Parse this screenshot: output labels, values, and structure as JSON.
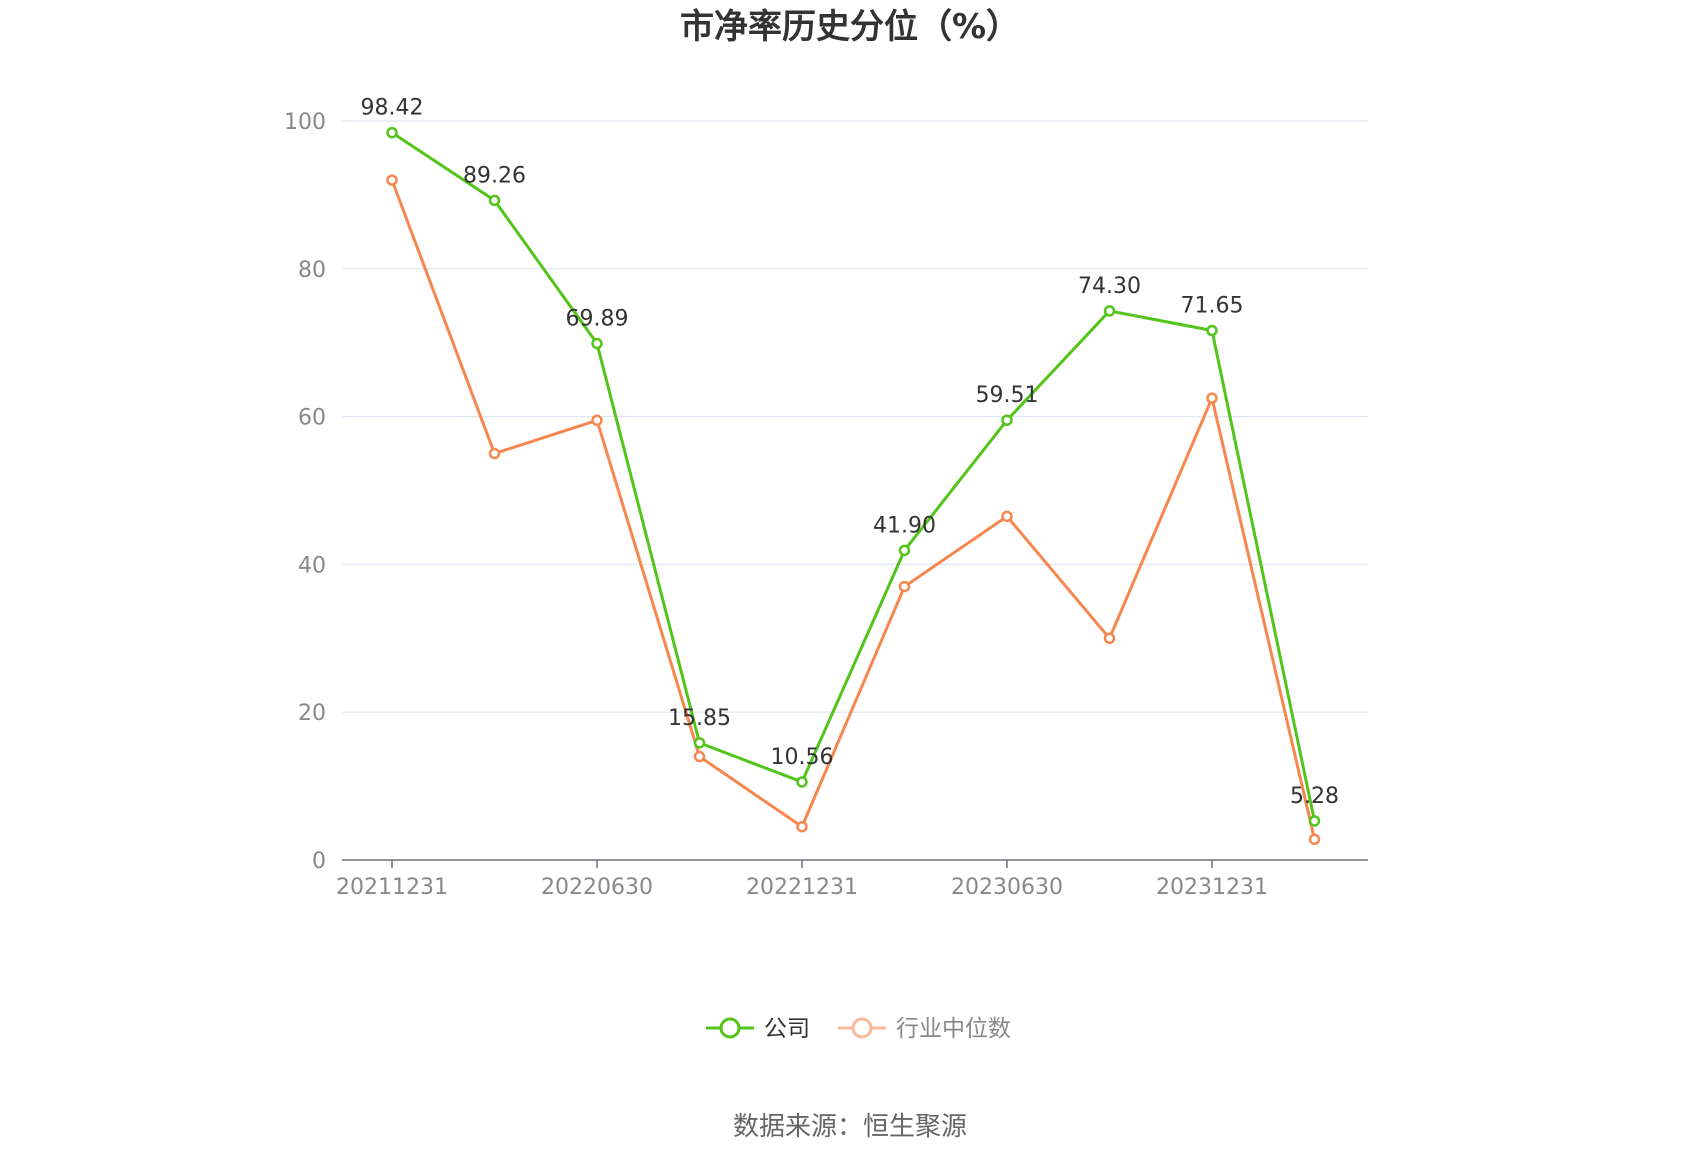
{
  "chart_data": {
    "type": "line",
    "title": "市净率历史分位（%）",
    "xlabel": "",
    "ylabel": "",
    "ylim": [
      0,
      100
    ],
    "yticks": [
      0,
      20,
      40,
      60,
      80,
      100
    ],
    "x": [
      "20211231",
      "20220331",
      "20220630",
      "20220930",
      "20221231",
      "20230331",
      "20230630",
      "20230930",
      "20231231",
      "20240331"
    ],
    "xtick_labels": [
      "20211231",
      "",
      "20220630",
      "",
      "20221231",
      "",
      "20230630",
      "",
      "20231231",
      ""
    ],
    "grid": true,
    "legend_position": "bottom-center",
    "series": [
      {
        "name": "公司",
        "color": "#52c41a",
        "values": [
          98.42,
          89.26,
          69.89,
          15.85,
          10.56,
          41.9,
          59.51,
          74.3,
          71.65,
          5.28
        ],
        "labels": [
          "98.42",
          "89.26",
          "69.89",
          "15.85",
          "10.56",
          "41.90",
          "59.51",
          "74.30",
          "71.65",
          "5.28"
        ]
      },
      {
        "name": "行业中位数",
        "color": "#f5874f",
        "values": [
          92.0,
          55.0,
          59.5,
          14.0,
          4.5,
          37.0,
          46.5,
          30.0,
          62.5,
          2.8
        ]
      }
    ]
  },
  "footer": {
    "source": "数据来源：恒生聚源"
  }
}
